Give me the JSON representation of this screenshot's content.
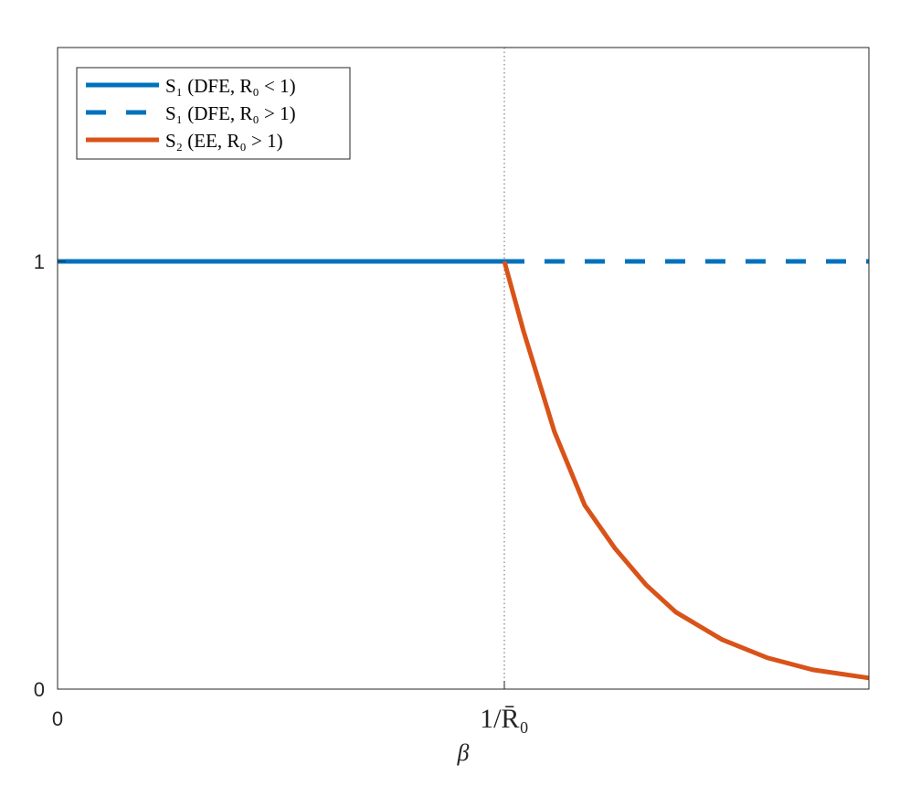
{
  "chart_data": {
    "type": "line",
    "xlabel": "β",
    "ylabel": "",
    "xlim": [
      0,
      1.816
    ],
    "ylim": [
      0,
      1.5
    ],
    "xticks": [
      {
        "value": 0,
        "label": "0"
      },
      {
        "value": 1,
        "label": "1/R̄₀"
      }
    ],
    "yticks": [
      {
        "value": 0,
        "label": "0"
      },
      {
        "value": 1,
        "label": "1"
      }
    ],
    "vline": {
      "x": 1,
      "style": "dotted",
      "color": "#808080"
    },
    "grid": false,
    "legend_placement": "top-left",
    "series": [
      {
        "name": "S₁ (DFE, R₀ < 1)",
        "color": "#0072BD",
        "dash": "solid",
        "x": [
          0,
          1
        ],
        "y": [
          1,
          1
        ]
      },
      {
        "name": "S₁ (DFE, R₀ > 1)",
        "color": "#0072BD",
        "dash": "dashed",
        "x": [
          1,
          1.816
        ],
        "y": [
          1,
          1
        ]
      },
      {
        "name": "S₂ (EE, R₀ > 1)",
        "color": "#D95319",
        "dash": "solid",
        "x": [
          1.0,
          1.043,
          1.112,
          1.18,
          1.247,
          1.317,
          1.384,
          1.487,
          1.589,
          1.691,
          1.816
        ],
        "y": [
          1.0,
          0.837,
          0.602,
          0.43,
          0.33,
          0.244,
          0.18,
          0.116,
          0.073,
          0.045,
          0.026
        ]
      }
    ]
  }
}
